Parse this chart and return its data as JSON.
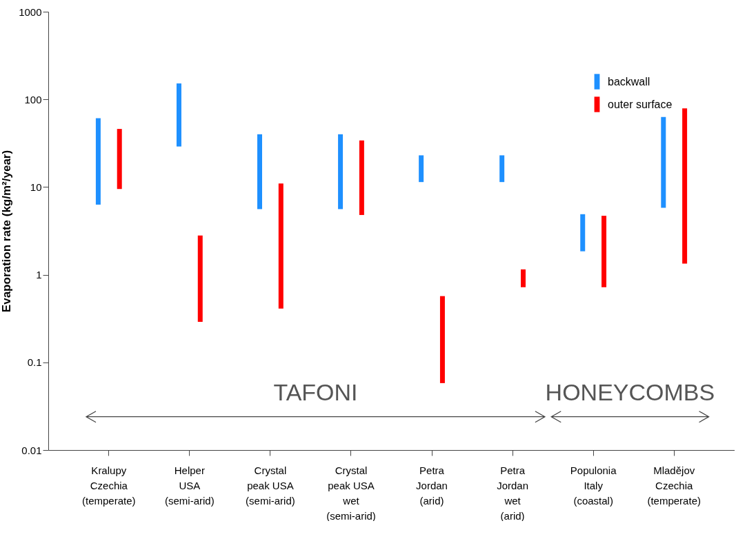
{
  "chart_data": {
    "type": "bar",
    "ylabel": "Evaporation rate (kg/m²/year)",
    "categories": [
      "Kralupy\nCzechia\n(temperate)",
      "Helper\nUSA\n(semi-arid)",
      "Crystal\npeak USA\n(semi-arid)",
      "Crystal\npeak USA\nwet\n(semi-arid)",
      "Petra\nJordan\n(arid)",
      "Petra\nJordan\nwet\n(arid)",
      "Populonia\nItaly\n(coastal)",
      "Mladějov\nCzechia\n(temperate)"
    ],
    "series": [
      {
        "name": "backwall",
        "color": "#1e90ff",
        "base": [
          6.3,
          29,
          5.6,
          5.6,
          11.4,
          11.4,
          1.85,
          5.8
        ],
        "values": [
          54.7,
          123,
          34.4,
          34.4,
          11.6,
          11.6,
          3.05,
          57.2
        ]
      },
      {
        "name": "outer surface",
        "color": "#ff0000",
        "base": [
          9.5,
          0.29,
          0.41,
          4.8,
          0.058,
          0.72,
          0.72,
          1.34
        ],
        "values": [
          36.5,
          2.51,
          10.59,
          29.2,
          0.512,
          0.43,
          3.98,
          77.66
        ]
      }
    ],
    "log": true,
    "ylim": [
      0.01,
      1000
    ],
    "yticks": [
      0.01,
      0.1,
      1,
      10,
      100,
      1000
    ],
    "grid": false,
    "legend": "top right",
    "annotations": [
      "TAFONI",
      "HONEYCOMBS"
    ]
  }
}
